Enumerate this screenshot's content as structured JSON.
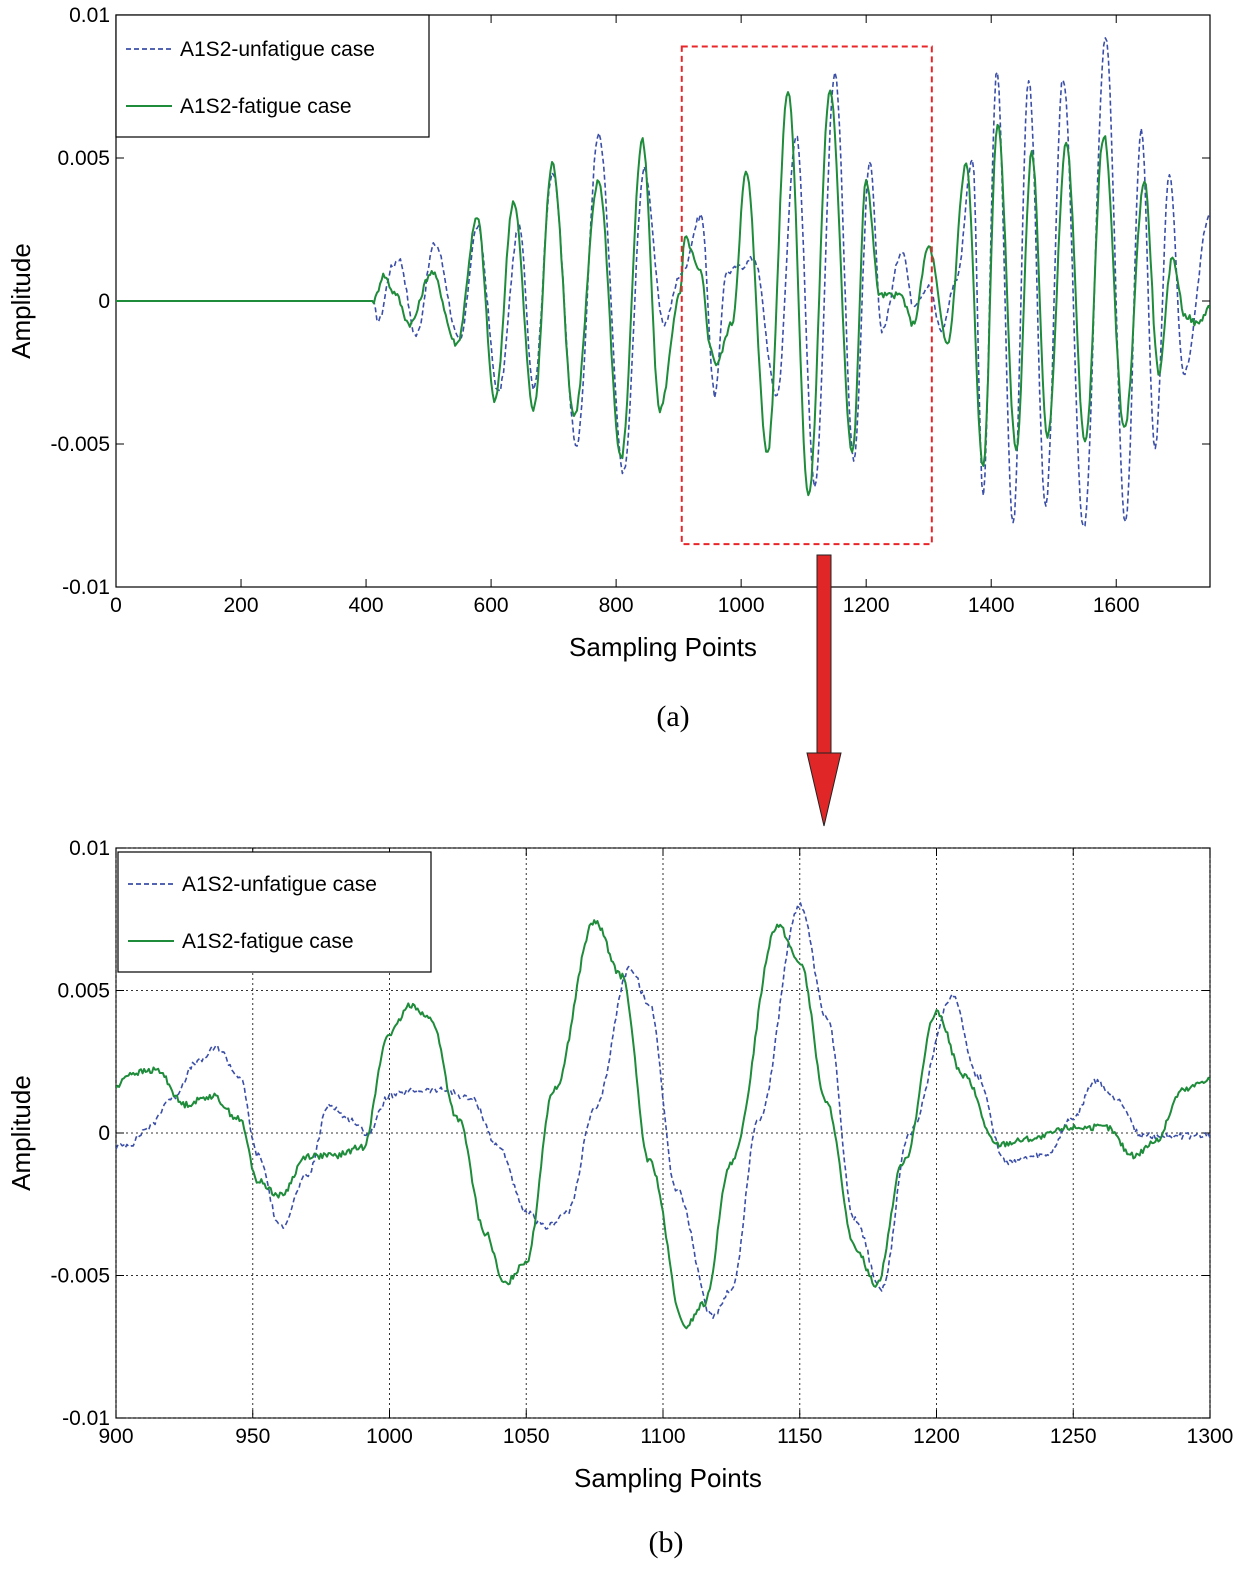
{
  "chart_data": [
    {
      "type": "line",
      "panel": "a",
      "caption": "(a)",
      "xlabel": "Sampling Points",
      "ylabel": "Amplitude",
      "xlim": [
        0,
        1750
      ],
      "ylim": [
        -0.01,
        0.01
      ],
      "xticks": [
        "0",
        "200",
        "400",
        "600",
        "800",
        "1000",
        "1200",
        "1400",
        "1600"
      ],
      "xtick_values": [
        0,
        200,
        400,
        600,
        800,
        1000,
        1200,
        1400,
        1600
      ],
      "yticks": [
        "0.01",
        "0.005",
        "0",
        "-0.005",
        "-0.01"
      ],
      "ytick_values": [
        0.01,
        0.005,
        0,
        -0.005,
        -0.01
      ],
      "grid": false,
      "legend_position": "top-left",
      "highlight_region": {
        "x": [
          905,
          1305
        ],
        "y": [
          -0.0085,
          0.0089
        ],
        "color": "#e8262a",
        "style": "dashed"
      },
      "series": [
        {
          "name": "A1S2-unfatigue case",
          "color": "#3b4fa8",
          "style": "dashed",
          "points": [
            [
              0,
              0
            ],
            [
              410,
              0
            ],
            [
              420,
              -0.0007
            ],
            [
              442,
              0.0012
            ],
            [
              452,
              0.0015
            ],
            [
              480,
              -0.0012
            ],
            [
              510,
              0.002
            ],
            [
              550,
              -0.0014
            ],
            [
              578,
              0.0026
            ],
            [
              612,
              -0.0032
            ],
            [
              645,
              0.0026
            ],
            [
              668,
              -0.003
            ],
            [
              698,
              0.0045
            ],
            [
              737,
              -0.005
            ],
            [
              772,
              0.0058
            ],
            [
              812,
              -0.006
            ],
            [
              845,
              0.0046
            ],
            [
              876,
              -0.0008
            ],
            [
              905,
              0.001
            ],
            [
              936,
              0.003
            ],
            [
              958,
              -0.0033
            ],
            [
              976,
              0.001
            ],
            [
              1000,
              0.0012
            ],
            [
              1020,
              0.0015
            ],
            [
              1057,
              -0.0033
            ],
            [
              1088,
              0.0058
            ],
            [
              1118,
              -0.0064
            ],
            [
              1150,
              0.008
            ],
            [
              1180,
              -0.0055
            ],
            [
              1206,
              0.0048
            ],
            [
              1225,
              -0.001
            ],
            [
              1258,
              0.0018
            ],
            [
              1275,
              -0.0001
            ],
            [
              1300,
              0.0005
            ],
            [
              1320,
              -0.001
            ],
            [
              1345,
              0.0008
            ],
            [
              1370,
              0.005
            ],
            [
              1387,
              -0.0068
            ],
            [
              1409,
              0.008
            ],
            [
              1435,
              -0.0078
            ],
            [
              1460,
              0.0078
            ],
            [
              1487,
              -0.0072
            ],
            [
              1515,
              0.0078
            ],
            [
              1548,
              -0.008
            ],
            [
              1583,
              0.0092
            ],
            [
              1615,
              -0.0078
            ],
            [
              1640,
              0.006
            ],
            [
              1662,
              -0.0052
            ],
            [
              1685,
              0.0045
            ],
            [
              1708,
              -0.0025
            ],
            [
              1750,
              0.003
            ]
          ]
        },
        {
          "name": "A1S2-fatigue case",
          "color": "#1e8c3a",
          "style": "solid",
          "points": [
            [
              0,
              0
            ],
            [
              412,
              0
            ],
            [
              428,
              0.0009
            ],
            [
              445,
              0.0003
            ],
            [
              470,
              -0.0008
            ],
            [
              505,
              0.001
            ],
            [
              545,
              -0.0015
            ],
            [
              578,
              0.0029
            ],
            [
              606,
              -0.0035
            ],
            [
              636,
              0.0035
            ],
            [
              668,
              -0.0038
            ],
            [
              698,
              0.0048
            ],
            [
              733,
              -0.004
            ],
            [
              772,
              0.0042
            ],
            [
              808,
              -0.0055
            ],
            [
              842,
              0.0056
            ],
            [
              870,
              -0.0038
            ],
            [
              902,
              0.0002
            ],
            [
              910,
              0.0022
            ],
            [
              935,
              0.001
            ],
            [
              952,
              -0.0017
            ],
            [
              960,
              -0.0022
            ],
            [
              985,
              -0.0008
            ],
            [
              1008,
              0.0045
            ],
            [
              1042,
              -0.0053
            ],
            [
              1075,
              0.0074
            ],
            [
              1108,
              -0.0068
            ],
            [
              1142,
              0.0073
            ],
            [
              1178,
              -0.0053
            ],
            [
              1200,
              0.0042
            ],
            [
              1222,
              0.0002
            ],
            [
              1255,
              0.0002
            ],
            [
              1275,
              -0.0008
            ],
            [
              1300,
              0.0019
            ],
            [
              1330,
              -0.0015
            ],
            [
              1360,
              0.0048
            ],
            [
              1387,
              -0.0058
            ],
            [
              1410,
              0.0062
            ],
            [
              1440,
              -0.0052
            ],
            [
              1465,
              0.0052
            ],
            [
              1490,
              -0.0048
            ],
            [
              1520,
              0.0055
            ],
            [
              1550,
              -0.005
            ],
            [
              1580,
              0.0058
            ],
            [
              1613,
              -0.0045
            ],
            [
              1645,
              0.0042
            ],
            [
              1668,
              -0.0025
            ],
            [
              1690,
              0.0015
            ],
            [
              1710,
              -0.0005
            ],
            [
              1730,
              -0.0008
            ],
            [
              1750,
              -0.0002
            ]
          ]
        }
      ]
    },
    {
      "type": "line",
      "panel": "b",
      "caption": "(b)",
      "xlabel": "Sampling Points",
      "ylabel": "Amplitude",
      "xlim": [
        900,
        1300
      ],
      "ylim": [
        -0.01,
        0.01
      ],
      "xticks": [
        "900",
        "950",
        "1000",
        "1050",
        "1100",
        "1150",
        "1200",
        "1250",
        "1300"
      ],
      "xtick_values": [
        900,
        950,
        1000,
        1050,
        1100,
        1150,
        1200,
        1250,
        1300
      ],
      "yticks": [
        "0.01",
        "0.005",
        "0",
        "-0.005",
        "-0.01"
      ],
      "ytick_values": [
        0.01,
        0.005,
        0,
        -0.005,
        -0.01
      ],
      "grid": true,
      "legend_position": "top-left",
      "series": [
        {
          "name": "A1S2-unfatigue case",
          "color": "#3b4fa8",
          "style": "dashed",
          "points": [
            [
              900,
              -0.0005
            ],
            [
              905,
              -0.0004
            ],
            [
              912,
              0.0002
            ],
            [
              920,
              0.0012
            ],
            [
              930,
              0.0025
            ],
            [
              937,
              0.003
            ],
            [
              945,
              0.002
            ],
            [
              952,
              -0.0008
            ],
            [
              960,
              -0.0033
            ],
            [
              970,
              -0.0015
            ],
            [
              978,
              0.001
            ],
            [
              985,
              0.0005
            ],
            [
              992,
              0.0
            ],
            [
              1000,
              0.0013
            ],
            [
              1010,
              0.0015
            ],
            [
              1020,
              0.0015
            ],
            [
              1030,
              0.0012
            ],
            [
              1040,
              -0.0005
            ],
            [
              1050,
              -0.0028
            ],
            [
              1057,
              -0.0033
            ],
            [
              1065,
              -0.0028
            ],
            [
              1075,
              0.0008
            ],
            [
              1088,
              0.0058
            ],
            [
              1095,
              0.0045
            ],
            [
              1105,
              -0.002
            ],
            [
              1118,
              -0.0064
            ],
            [
              1125,
              -0.0055
            ],
            [
              1135,
              0.0005
            ],
            [
              1150,
              0.008
            ],
            [
              1160,
              0.004
            ],
            [
              1170,
              -0.003
            ],
            [
              1180,
              -0.0055
            ],
            [
              1190,
              0.0
            ],
            [
              1206,
              0.0048
            ],
            [
              1215,
              0.002
            ],
            [
              1225,
              -0.001
            ],
            [
              1240,
              -0.0008
            ],
            [
              1250,
              0.0005
            ],
            [
              1258,
              0.0018
            ],
            [
              1266,
              0.0012
            ],
            [
              1275,
              -0.0001
            ],
            [
              1300,
              -0.0001
            ]
          ]
        },
        {
          "name": "A1S2-fatigue case",
          "color": "#1e8c3a",
          "style": "solid",
          "points": [
            [
              900,
              0.0016
            ],
            [
              905,
              0.0021
            ],
            [
              915,
              0.0022
            ],
            [
              925,
              0.001
            ],
            [
              935,
              0.0013
            ],
            [
              945,
              0.0005
            ],
            [
              952,
              -0.0017
            ],
            [
              960,
              -0.0022
            ],
            [
              970,
              -0.0008
            ],
            [
              980,
              -0.0008
            ],
            [
              990,
              -0.0005
            ],
            [
              1000,
              0.0035
            ],
            [
              1008,
              0.0045
            ],
            [
              1015,
              0.004
            ],
            [
              1025,
              0.0005
            ],
            [
              1035,
              -0.0035
            ],
            [
              1042,
              -0.0053
            ],
            [
              1050,
              -0.0045
            ],
            [
              1060,
              0.0015
            ],
            [
              1075,
              0.0074
            ],
            [
              1085,
              0.0055
            ],
            [
              1095,
              -0.001
            ],
            [
              1108,
              -0.0068
            ],
            [
              1115,
              -0.006
            ],
            [
              1125,
              -0.001
            ],
            [
              1142,
              0.0073
            ],
            [
              1150,
              0.006
            ],
            [
              1160,
              0.001
            ],
            [
              1170,
              -0.004
            ],
            [
              1178,
              -0.0053
            ],
            [
              1188,
              -0.001
            ],
            [
              1200,
              0.0042
            ],
            [
              1210,
              0.002
            ],
            [
              1222,
              -0.0004
            ],
            [
              1235,
              -0.0002
            ],
            [
              1250,
              0.0002
            ],
            [
              1262,
              0.0002
            ],
            [
              1272,
              -0.0008
            ],
            [
              1280,
              -0.0003
            ],
            [
              1290,
              0.0015
            ],
            [
              1300,
              0.0019
            ]
          ]
        }
      ]
    }
  ]
}
